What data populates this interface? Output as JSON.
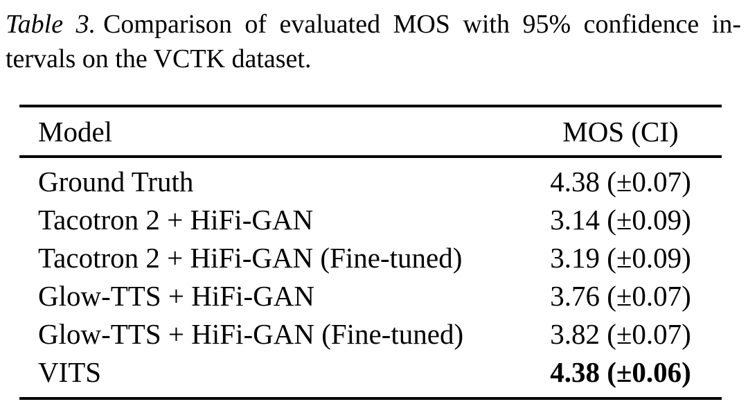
{
  "caption": {
    "label": "Table 3.",
    "line1": "Comparison of evaluated MOS with 95% confidence in-",
    "line2": "tervals on the VCTK dataset."
  },
  "table": {
    "columns": [
      "Model",
      "MOS (CI)"
    ],
    "rows": [
      {
        "model": "Ground Truth",
        "mos": "4.38 (±0.07)"
      },
      {
        "model": "Tacotron 2 + HiFi-GAN",
        "mos": "3.14 (±0.09)"
      },
      {
        "model": "Tacotron 2 + HiFi-GAN (Fine-tuned)",
        "mos": "3.19 (±0.09)"
      },
      {
        "model": "Glow-TTS + HiFi-GAN",
        "mos": "3.76 (±0.07)"
      },
      {
        "model": "Glow-TTS + HiFi-GAN (Fine-tuned)",
        "mos": "3.82 (±0.07)"
      },
      {
        "model": "VITS",
        "mos": "4.38 (±0.06)"
      }
    ],
    "bold_row_index": 5
  },
  "colors": {
    "text": "#000000",
    "background": "#ffffff"
  }
}
